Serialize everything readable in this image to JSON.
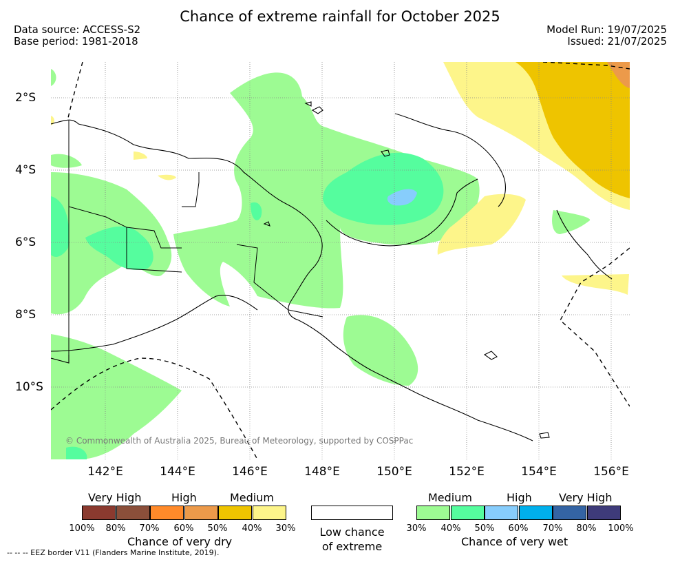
{
  "title": "Chance of extreme rainfall for October 2025",
  "data_source": "Data source: ACCESS-S2",
  "base_period": "Base period: 1981-2018",
  "model_run": "Model Run: 19/07/2025",
  "issued": "Issued: 21/07/2025",
  "map": {
    "lat_labels": [
      "2°S",
      "4°S",
      "6°S",
      "8°S",
      "10°S"
    ],
    "lon_labels": [
      "142°E",
      "144°E",
      "146°E",
      "148°E",
      "150°E",
      "152°E",
      "154°E",
      "156°E"
    ],
    "copyright": "© Commonwealth of Australia 2025, Bureau of Meteorology, supported by COSPPac"
  },
  "legend": {
    "dry": {
      "levels": [
        "Very High",
        "High",
        "Medium"
      ],
      "colors": [
        "#8b3a2f",
        "#8b4f3a",
        "#ff8a2a",
        "#ec9a4a",
        "#eec400",
        "#fdf58a"
      ],
      "ticks": [
        "100%",
        "80%",
        "70%",
        "60%",
        "50%",
        "40%",
        "30%"
      ],
      "caption": "Chance of very dry"
    },
    "low": {
      "caption_line1": "Low chance",
      "caption_line2": "of extreme",
      "color": "#ffffff"
    },
    "wet": {
      "levels": [
        "Medium",
        "High",
        "Very High"
      ],
      "colors": [
        "#9dfb93",
        "#55fd9e",
        "#87cdfc",
        "#00b0ec",
        "#3464a4",
        "#3e3b7a"
      ],
      "ticks": [
        "30%",
        "40%",
        "50%",
        "60%",
        "70%",
        "80%",
        "100%"
      ],
      "caption": "Chance of very wet"
    }
  },
  "eez_note": "--  --  -- EEZ border V11 (Flanders Marine Institute, 2019)."
}
